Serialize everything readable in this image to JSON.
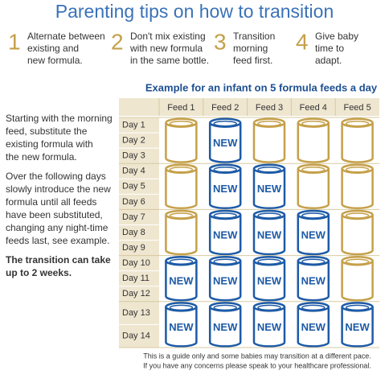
{
  "title": "Parenting tips on how to transition",
  "tips": [
    {
      "number": "1",
      "lines": [
        "Alternate between",
        "existing and",
        "new formula."
      ]
    },
    {
      "number": "2",
      "lines": [
        "Don't mix existing",
        "with new formula",
        "in the same bottle."
      ]
    },
    {
      "number": "3",
      "lines": [
        "Transition",
        "morning",
        "feed first."
      ]
    },
    {
      "number": "4",
      "lines": [
        "Give baby",
        "time to",
        "adapt."
      ]
    }
  ],
  "example_title": "Example for an infant on 5 formula feeds a day",
  "feeds": [
    "Feed 1",
    "Feed 2",
    "Feed 3",
    "Feed 4",
    "Feed 5"
  ],
  "side_text": [
    {
      "lines": [
        "Starting with the morning",
        "feed, substitute the",
        "existing formula with",
        "the new formula."
      ],
      "bold": false
    },
    {
      "lines": [
        "Over the following days",
        "slowly introduce the new",
        "formula until all feeds",
        "have been substituted,",
        "changing any night-time",
        "feeds last, see example."
      ],
      "bold": false
    },
    {
      "lines": [
        "The transition can take",
        "up to 2 weeks."
      ],
      "bold": true
    }
  ],
  "groups": [
    {
      "days": [
        "Day 1",
        "Day 2",
        "Day 3"
      ],
      "cans": [
        {
          "label": null
        },
        {
          "label": "NEW"
        },
        {
          "label": null
        },
        {
          "label": null
        },
        {
          "label": null
        }
      ]
    },
    {
      "days": [
        "Day 4",
        "Day 5",
        "Day 6"
      ],
      "cans": [
        {
          "label": null
        },
        {
          "label": "NEW"
        },
        {
          "label": "NEW"
        },
        {
          "label": null
        },
        {
          "label": null
        }
      ]
    },
    {
      "days": [
        "Day 7",
        "Day 8",
        "Day 9"
      ],
      "cans": [
        {
          "label": null
        },
        {
          "label": "NEW"
        },
        {
          "label": "NEW"
        },
        {
          "label": "NEW"
        },
        {
          "label": null
        }
      ]
    },
    {
      "days": [
        "Day 10",
        "Day 11",
        "Day 12"
      ],
      "cans": [
        {
          "label": "NEW"
        },
        {
          "label": "NEW"
        },
        {
          "label": "NEW"
        },
        {
          "label": "NEW"
        },
        {
          "label": null
        }
      ]
    },
    {
      "days": [
        "Day 13",
        "Day 14"
      ],
      "cans": [
        {
          "label": "NEW"
        },
        {
          "label": "NEW"
        },
        {
          "label": "NEW"
        },
        {
          "label": "NEW"
        },
        {
          "label": "NEW"
        }
      ]
    }
  ],
  "footnote": [
    "This is a guide only and some babies may transition at a different pace.",
    "If you have any concerns please speak to your healthcare professional."
  ]
}
